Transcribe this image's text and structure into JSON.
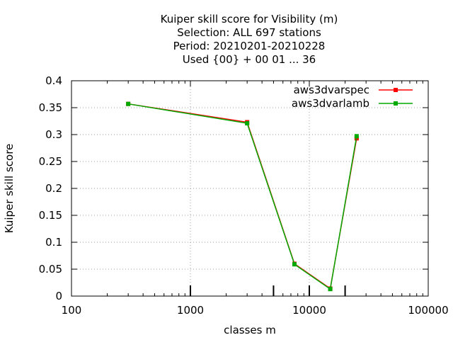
{
  "chart_data": {
    "type": "line",
    "title_lines": [
      "Kuiper skill score  for Visibility (m)",
      "Selection: ALL    697 stations",
      "Period: 20210201-20210228",
      "Used {00} + 00 01 ... 36"
    ],
    "xlabel": "classes m",
    "ylabel": "Kuiper skill score",
    "x_scale": "log",
    "xlim": [
      100,
      100000
    ],
    "ylim": [
      0,
      0.4
    ],
    "x_ticks": [
      100,
      1000,
      10000,
      100000
    ],
    "x_tick_labels": [
      "100",
      "1000",
      "10000",
      "100000"
    ],
    "y_ticks": [
      0,
      0.05,
      0.1,
      0.15,
      0.2,
      0.25,
      0.3,
      0.35,
      0.4
    ],
    "y_tick_labels": [
      "0",
      "0.05",
      "0.1",
      "0.15",
      "0.2",
      "0.25",
      "0.3",
      "0.35",
      "0.4"
    ],
    "grid": true,
    "legend_position": "top-right",
    "class_marks": [
      1000,
      5000,
      10000,
      20000
    ],
    "series": [
      {
        "name": "aws3dvarspec",
        "color": "#ff0000",
        "x": [
          300,
          3000,
          7500,
          15000,
          25000
        ],
        "y": [
          0.357,
          0.323,
          0.06,
          0.014,
          0.293
        ]
      },
      {
        "name": "aws3dvarlamb",
        "color": "#00aa00",
        "x": [
          300,
          3000,
          7500,
          15000,
          25000
        ],
        "y": [
          0.357,
          0.321,
          0.059,
          0.013,
          0.297
        ]
      }
    ]
  }
}
